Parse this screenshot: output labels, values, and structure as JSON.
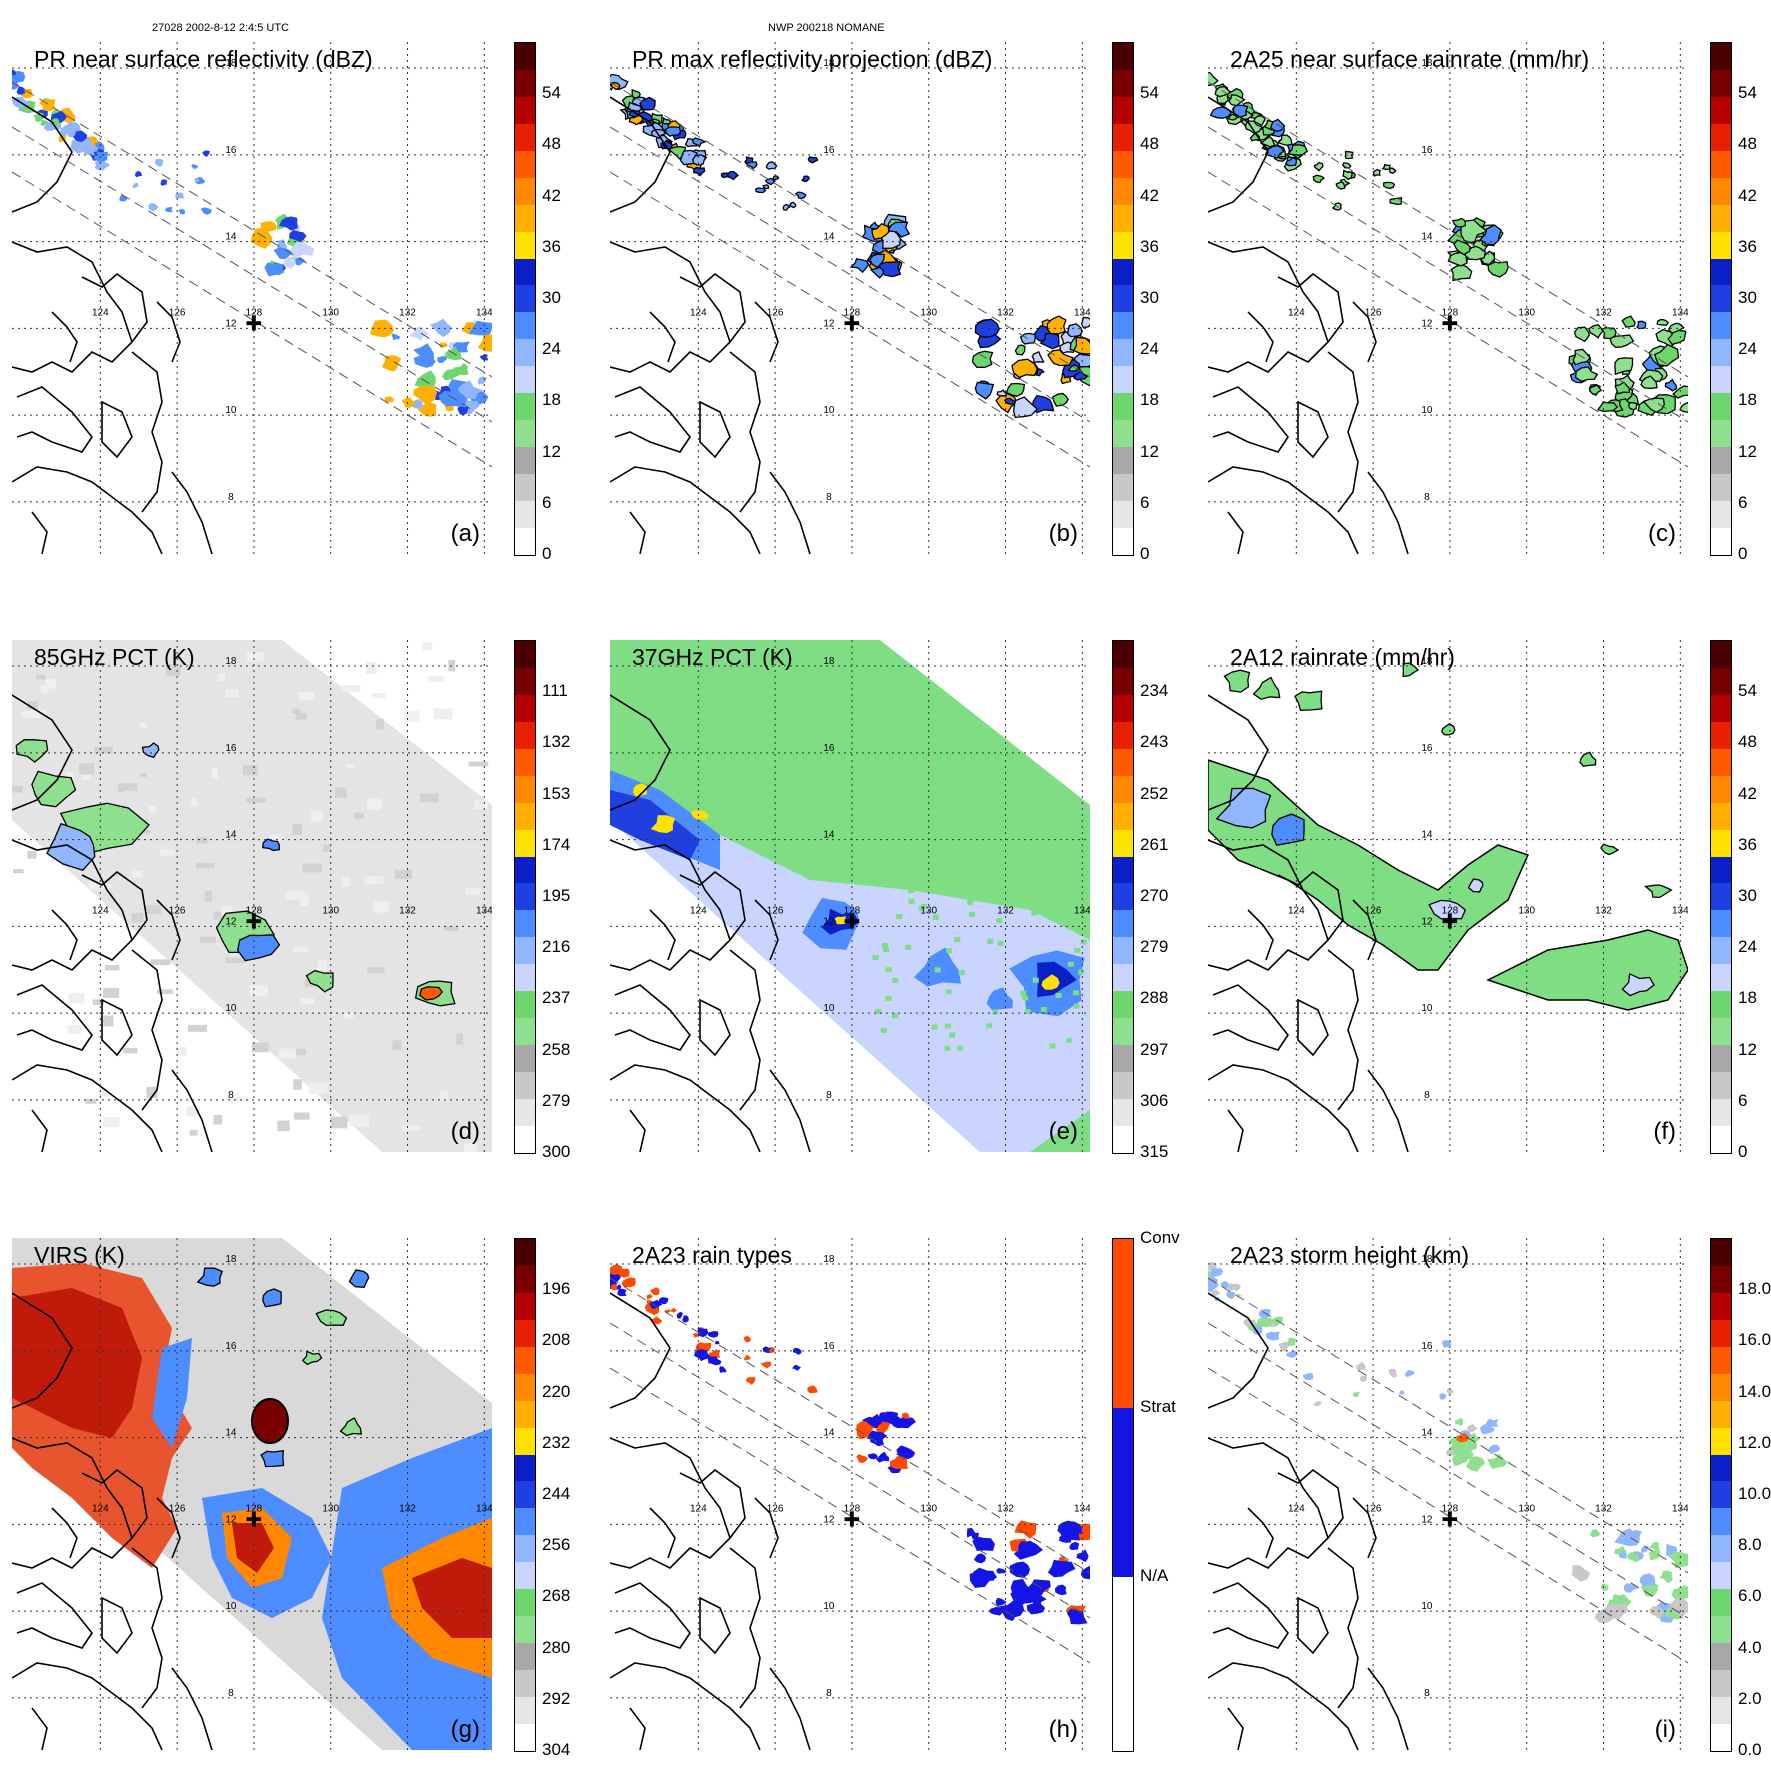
{
  "header": {
    "orbit_info": "27028 2002-8-12 2:4:5 UTC",
    "storm_info": "NWP 200218 NOMANE"
  },
  "colors": {
    "land_outline": "#000000",
    "grid": "#333333",
    "swath_edge": "#555555",
    "pr_scale": [
      "#ffffff",
      "#e6e6e6",
      "#c8c8c8",
      "#a8a8a8",
      "#8ee08e",
      "#6dd66d",
      "#c9d4ff",
      "#8fb6ff",
      "#4d8dff",
      "#1f3fe0",
      "#0b1fc8",
      "#ffe100",
      "#ffb000",
      "#ff8800",
      "#ff5a00",
      "#e82000",
      "#b40000",
      "#7a0000",
      "#4a0000"
    ],
    "pct_scale": [
      "#ffffff",
      "#e6e6e6",
      "#c8c8c8",
      "#a8a8a8",
      "#8ee08e",
      "#6dd66d",
      "#c9d4ff",
      "#8fb6ff",
      "#4d8dff",
      "#1f3fe0",
      "#0b1fc8",
      "#ffe100",
      "#ffb000",
      "#ff8800",
      "#ff5a00",
      "#e82000",
      "#b40000",
      "#7a0000",
      "#4a0000"
    ],
    "rain_type": {
      "conv": "#ff4a00",
      "strat": "#1414e6",
      "na": "#ffffff"
    }
  },
  "axes": {
    "lon_labels": [
      "124",
      "126",
      "128",
      "130",
      "132",
      "134"
    ],
    "lat_labels": [
      "18",
      "16",
      "14",
      "12",
      "10",
      "8"
    ],
    "storm_center_symbol": "✚"
  },
  "panels": [
    {
      "id": "a",
      "title": "PR near surface reflectivity (dBZ)",
      "label": "(a)",
      "kind": "pr",
      "colorbar": {
        "ticks": [
          "54",
          "48",
          "42",
          "36",
          "30",
          "24",
          "18",
          "12",
          "6",
          "0"
        ]
      }
    },
    {
      "id": "b",
      "title": "PR max reflectivity projection (dBZ)",
      "label": "(b)",
      "kind": "pr",
      "colorbar": {
        "ticks": [
          "54",
          "48",
          "42",
          "36",
          "30",
          "24",
          "18",
          "12",
          "6",
          "0"
        ]
      }
    },
    {
      "id": "c",
      "title": "2A25 near surface rainrate (mm/hr)",
      "label": "(c)",
      "kind": "pr",
      "colorbar": {
        "ticks": [
          "54",
          "48",
          "42",
          "36",
          "30",
          "24",
          "18",
          "12",
          "6",
          "0"
        ]
      }
    },
    {
      "id": "d",
      "title": "85GHz PCT (K)",
      "label": "(d)",
      "kind": "tmi",
      "colorbar": {
        "ticks": [
          "111",
          "132",
          "153",
          "174",
          "195",
          "216",
          "237",
          "258",
          "279",
          "300"
        ]
      }
    },
    {
      "id": "e",
      "title": "37GHz PCT (K)",
      "label": "(e)",
      "kind": "tmi37",
      "colorbar": {
        "ticks": [
          "234",
          "243",
          "252",
          "261",
          "270",
          "279",
          "288",
          "297",
          "306",
          "315"
        ]
      }
    },
    {
      "id": "f",
      "title": "2A12 rainrate (mm/hr)",
      "label": "(f)",
      "kind": "tmirain",
      "colorbar": {
        "ticks": [
          "54",
          "48",
          "42",
          "36",
          "30",
          "24",
          "18",
          "12",
          "6",
          "0"
        ]
      }
    },
    {
      "id": "g",
      "title": "VIRS (K)",
      "label": "(g)",
      "kind": "virs",
      "colorbar": {
        "ticks": [
          "196",
          "208",
          "220",
          "232",
          "244",
          "256",
          "268",
          "280",
          "292",
          "304"
        ]
      }
    },
    {
      "id": "h",
      "title": "2A23 rain types",
      "label": "(h)",
      "kind": "raintype",
      "colorbar": {
        "ticks": [
          "Conv",
          "Strat",
          "N/A"
        ]
      }
    },
    {
      "id": "i",
      "title": "2A23 storm height (km)",
      "label": "(i)",
      "kind": "pr",
      "colorbar": {
        "ticks": [
          "18.0",
          "16.0",
          "14.0",
          "12.0",
          "10.0",
          "8.0",
          "6.0",
          "4.0",
          "2.0",
          "0.0"
        ]
      }
    }
  ]
}
